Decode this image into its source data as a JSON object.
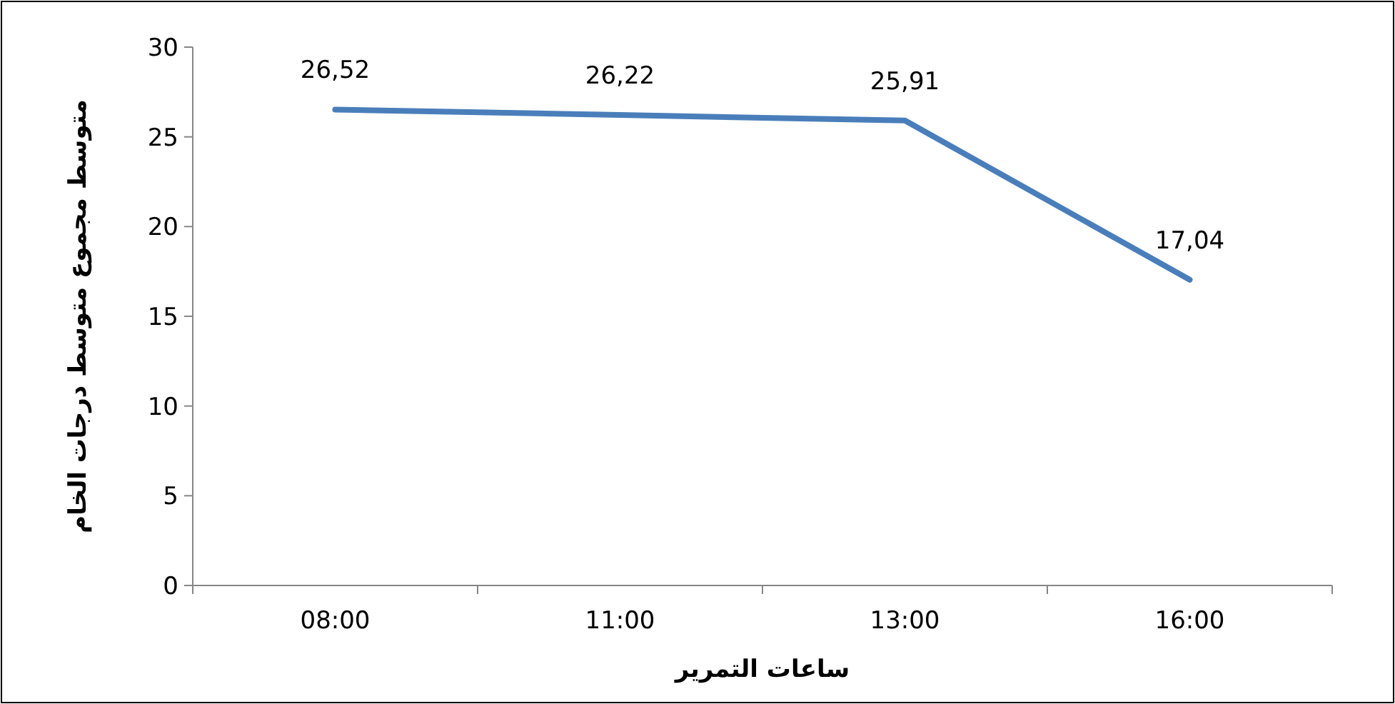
{
  "chart_data": {
    "type": "line",
    "xlabel": "ساعات التمرير",
    "ylabel": "متوسط مجموع متوسط درجات الخام",
    "categories": [
      "08:00",
      "11:00",
      "13:00",
      "16:00"
    ],
    "values": [
      26.52,
      26.22,
      25.91,
      17.04
    ],
    "value_labels": [
      "26,52",
      "26,22",
      "25,91",
      "17,04"
    ],
    "color": "#4a7ebb",
    "ylim": [
      0,
      30
    ],
    "yticks": [
      0,
      5,
      10,
      15,
      20,
      25,
      30
    ]
  }
}
